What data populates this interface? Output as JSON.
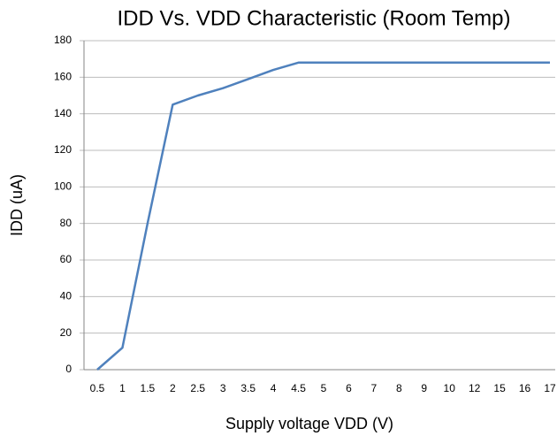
{
  "chart_data": {
    "type": "line",
    "title": "IDD Vs. VDD Characteristic (Room Temp)",
    "x_label": "Supply voltage VDD (V)",
    "y_label": "IDD  (uA)",
    "categories": [
      "0.5",
      "1",
      "1.5",
      "2",
      "2.5",
      "3",
      "3.5",
      "4",
      "4.5",
      "5",
      "6",
      "7",
      "8",
      "9",
      "10",
      "12",
      "15",
      "16",
      "17"
    ],
    "series": [
      {
        "name": "IDD",
        "color": "#4f81bd",
        "values": [
          0,
          12,
          80,
          145,
          150,
          154,
          159,
          164,
          168,
          168,
          168,
          168,
          168,
          168,
          168,
          168,
          168,
          168,
          168
        ]
      }
    ],
    "ylim": [
      0,
      180
    ],
    "yticks": [
      0,
      20,
      40,
      60,
      80,
      100,
      120,
      140,
      160,
      180
    ],
    "grid": true
  }
}
